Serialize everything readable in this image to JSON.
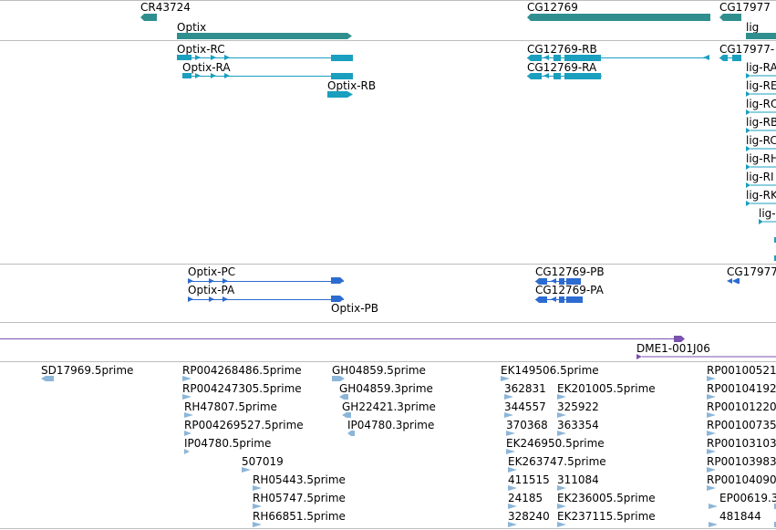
{
  "colors": {
    "gene": "#2f8f8f",
    "ncrna": "#2f8f8f",
    "mrna": "#1a9fbf",
    "protein": "#2c6bd1",
    "clone": "#7b52ad",
    "est": "#8cb6d9",
    "divider": "#bdbdbd"
  },
  "tracks": {
    "genes": {
      "labels": [
        "CR43724",
        "Optix",
        "CG12769",
        "CG17977",
        "lig"
      ]
    },
    "transcripts": {
      "labels": [
        "Optix-RC",
        "Optix-RA",
        "Optix-RB",
        "CG12769-RB",
        "CG12769-RA",
        "CG17977-",
        "lig-RA",
        "lig-RE",
        "lig-RO",
        "lig-RB",
        "lig-RC",
        "lig-RH",
        "lig-RI",
        "lig-RK",
        "lig-"
      ]
    },
    "proteins": {
      "labels": [
        "Optix-PC",
        "Optix-PA",
        "Optix-PB",
        "CG12769-PB",
        "CG12769-PA",
        "CG17977"
      ]
    },
    "clones": {
      "labels": [
        "DME1-001J06"
      ]
    },
    "ests": {
      "labels": [
        "SD17969.5prime",
        "RP004268486.5prime",
        "RP004247305.5prime",
        "RH47807.5prime",
        "RP004269527.5prime",
        "IP04780.5prime",
        "507019",
        "RH05443.5prime",
        "RH05747.5prime",
        "RH66851.5prime",
        "GH04859.5prime",
        "GH04859.3prime",
        "GH22421.3prime",
        "IP04780.3prime",
        "EK149506.5prime",
        "362831",
        "344557",
        "370368",
        "EK246950.5prime",
        "EK263747.5prime",
        "411515",
        "24185",
        "328240",
        "EK201005.5prime",
        "325922",
        "363354",
        "311084",
        "EK236005.5prime",
        "EK237115.5prime",
        "RP00100521",
        "RP00104192",
        "RP00101220",
        "RP00100735",
        "RP00103103",
        "RP00103983",
        "RP00104090",
        "EP00619.3",
        "481844"
      ]
    }
  }
}
